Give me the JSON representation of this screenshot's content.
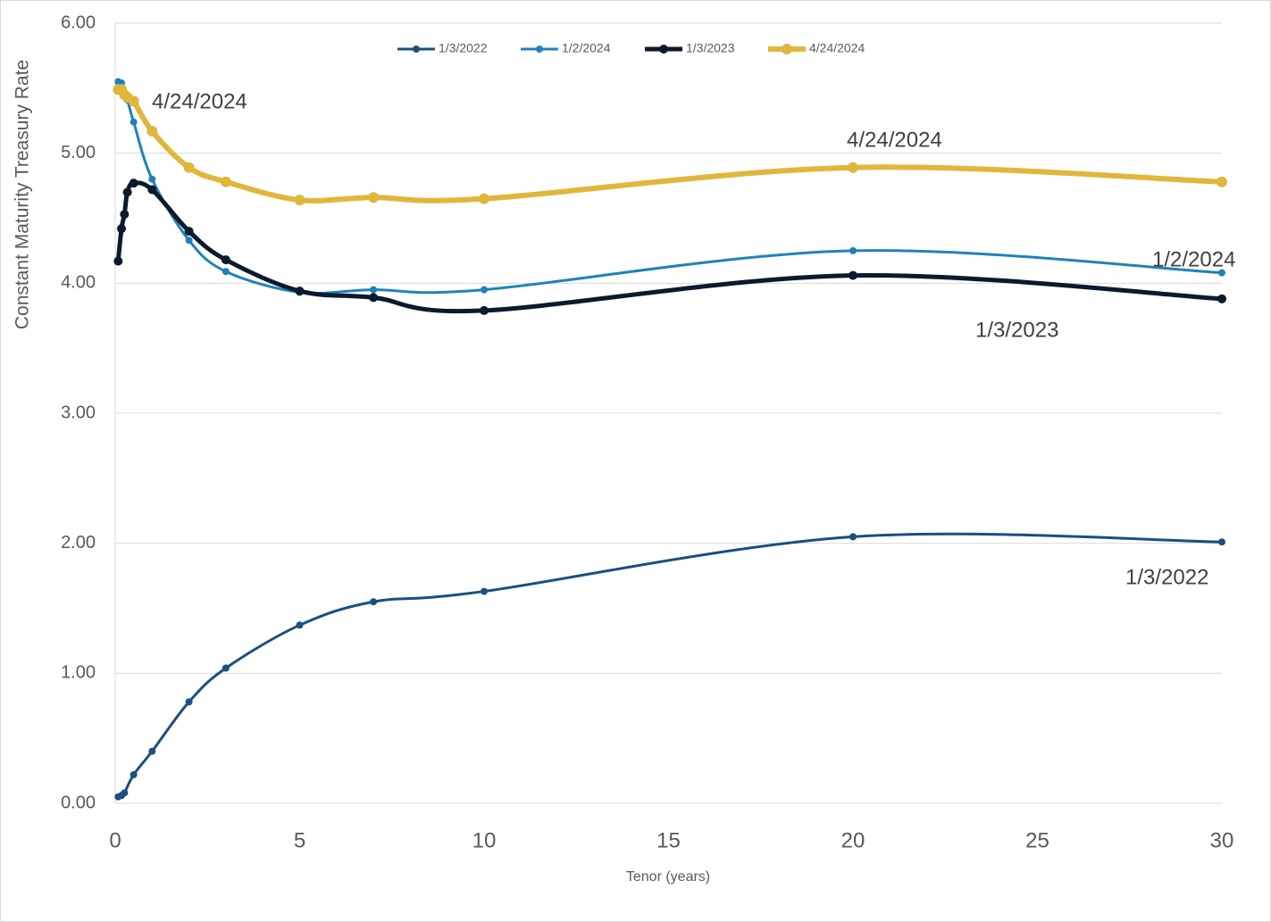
{
  "chart_data": {
    "type": "line",
    "y_label": "Constant Maturity Treasury Rate",
    "x_label": "Tenor (years)",
    "xlim": [
      0,
      30
    ],
    "xticks": [
      0,
      5,
      10,
      15,
      20,
      25,
      30
    ],
    "ylim": [
      0,
      6
    ],
    "yticks": [
      {
        "value": 0,
        "label": "0.00"
      },
      {
        "value": 1,
        "label": "1.00"
      },
      {
        "value": 2,
        "label": "2.00"
      },
      {
        "value": 3,
        "label": "3.00"
      },
      {
        "value": 4,
        "label": "4.00"
      },
      {
        "value": 5,
        "label": "5.00"
      },
      {
        "value": 6,
        "label": "6.00"
      }
    ],
    "grid": true,
    "legend": "top",
    "series": [
      {
        "name": "1/3/2022",
        "color": "#1a4f80",
        "x": [
          0.08,
          0.17,
          0.25,
          0.5,
          1,
          2,
          3,
          5,
          7,
          10,
          20,
          30
        ],
        "values": [
          0.05,
          0.06,
          0.08,
          0.22,
          0.4,
          0.78,
          1.04,
          1.37,
          1.55,
          1.63,
          2.05,
          2.01
        ]
      },
      {
        "name": "1/2/2024",
        "color": "#1f83b8",
        "x": [
          0.08,
          0.17,
          0.25,
          0.33,
          0.5,
          1,
          2,
          3,
          5,
          7,
          10,
          20,
          30
        ],
        "values": [
          5.55,
          5.54,
          5.46,
          5.41,
          5.24,
          4.8,
          4.33,
          4.09,
          3.93,
          3.95,
          3.95,
          4.25,
          4.08
        ]
      },
      {
        "name": "1/3/2023",
        "color": "#0b1a2e",
        "x": [
          0.08,
          0.17,
          0.25,
          0.33,
          0.5,
          1,
          2,
          3,
          5,
          7,
          10,
          20,
          30
        ],
        "values": [
          4.17,
          4.42,
          4.53,
          4.7,
          4.77,
          4.72,
          4.4,
          4.18,
          3.94,
          3.89,
          3.79,
          4.06,
          3.88
        ]
      },
      {
        "name": "4/24/2024",
        "color": "#e0b63c",
        "x": [
          0.08,
          0.17,
          0.25,
          0.33,
          0.5,
          1,
          2,
          3,
          5,
          7,
          10,
          20,
          30
        ],
        "values": [
          5.49,
          5.49,
          5.45,
          5.43,
          5.4,
          5.17,
          4.89,
          4.78,
          4.64,
          4.66,
          4.65,
          4.89,
          4.78
        ]
      }
    ],
    "annotations": [
      "4/24/2024",
      "4/24/2024",
      "1/2/2024",
      "1/3/2023",
      "1/3/2022"
    ]
  }
}
